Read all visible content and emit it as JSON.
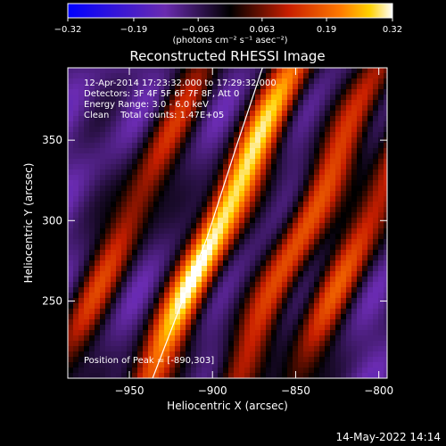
{
  "chart_data": {
    "type": "heatmap",
    "title": "Reconstructed RHESSI Image",
    "xlabel": "Heliocentric X (arcsec)",
    "ylabel": "Heliocentric Y (arcsec)",
    "xlim": [
      -987,
      -795
    ],
    "ylim": [
      202,
      395
    ],
    "x_ticks": [
      -950,
      -900,
      -850,
      -800
    ],
    "x_tick_labels": [
      "−950",
      "−900",
      "−850",
      "−800"
    ],
    "y_ticks": [
      250,
      300,
      350
    ],
    "y_tick_labels": [
      "250",
      "300",
      "350"
    ],
    "colorbar": {
      "range": [
        -0.32,
        0.32
      ],
      "ticks": [
        -0.32,
        -0.19,
        -0.063,
        0.063,
        0.19,
        0.32
      ],
      "tick_labels": [
        "−0.32",
        "−0.19",
        "−0.063",
        "0.063",
        "0.19",
        "0.32"
      ],
      "unit_label": "(photons cm⁻² s⁻¹ asec⁻²)",
      "colors": [
        "#0000ff",
        "#6a2bb0",
        "#000000",
        "#c81e00",
        "#ff7a00",
        "#ffffff"
      ]
    },
    "annotations": [
      "12-Apr-2014 17:23:32.000 to 17:29:32.000",
      "Detectors: 3F 4F 5F 6F 7F 8F, Att 0",
      "Energy Range: 3.0 - 6.0 keV",
      "Clean    Total counts: 1.47E+05",
      "Position of Peak = [-890,303]"
    ],
    "peak_position": [
      -890,
      303
    ],
    "ridges": [
      {
        "x0": -895,
        "y0": 300,
        "amplitude": 0.32
      },
      {
        "x0": -950,
        "y0": 300,
        "amplitude": 0.17
      },
      {
        "x0": -843,
        "y0": 300,
        "amplitude": 0.2
      },
      {
        "x0": -806,
        "y0": 300,
        "amplitude": 0.19
      }
    ],
    "limb_curve": [
      [
        -936,
        202
      ],
      [
        -920,
        245
      ],
      [
        -903,
        290
      ],
      [
        -886,
        345
      ],
      [
        -870,
        395
      ]
    ],
    "grid": false,
    "legend": "none"
  },
  "footer": {
    "timestamp": "14-May-2022 14:14"
  }
}
